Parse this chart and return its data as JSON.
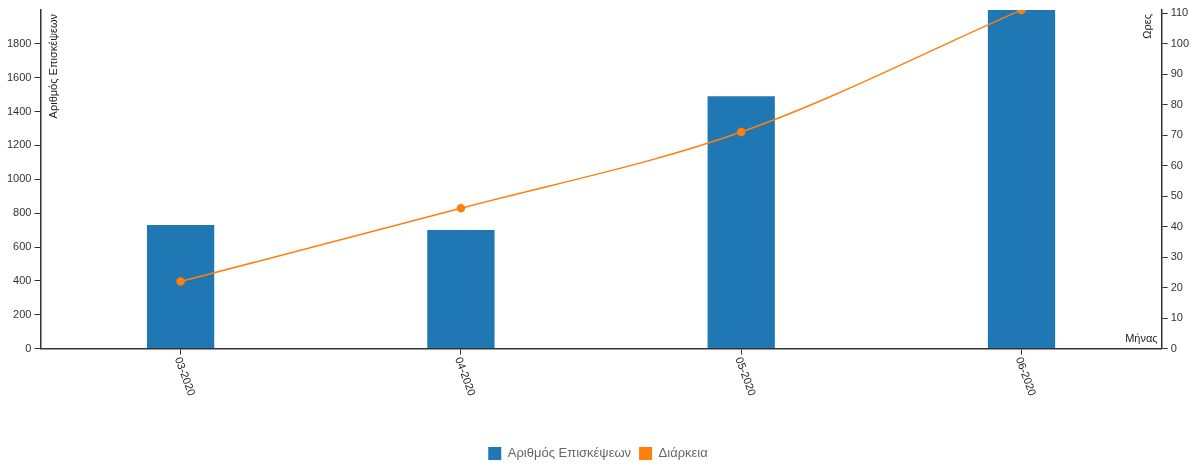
{
  "chart_data": {
    "type": "bar",
    "xlabel": "Μήνας",
    "ylabel": "Αριθμός Επισκέψεων",
    "y2label": "Ωρες",
    "categories": [
      "03-2020",
      "04-2020",
      "05-2020",
      "06-2020"
    ],
    "series": [
      {
        "name": "Αριθμός Επισκέψεων",
        "color": "#1f77b4",
        "values": [
          730,
          700,
          1490,
          2000
        ]
      },
      {
        "name": "Διάρκεια",
        "type": "line",
        "axis": "y2",
        "color": "#ff7f0e",
        "values": [
          22,
          46,
          71,
          111
        ],
        "marker": "circle"
      }
    ],
    "ylim": [
      0,
      2000
    ],
    "yticks": [
      0,
      200,
      400,
      600,
      800,
      1000,
      1200,
      1400,
      1600,
      1800
    ],
    "y2lim": [
      0,
      111
    ],
    "y2ticks": [
      0,
      10,
      20,
      30,
      40,
      50,
      60,
      70,
      80,
      90,
      100,
      110
    ],
    "grid": false,
    "legend": "bottom"
  }
}
